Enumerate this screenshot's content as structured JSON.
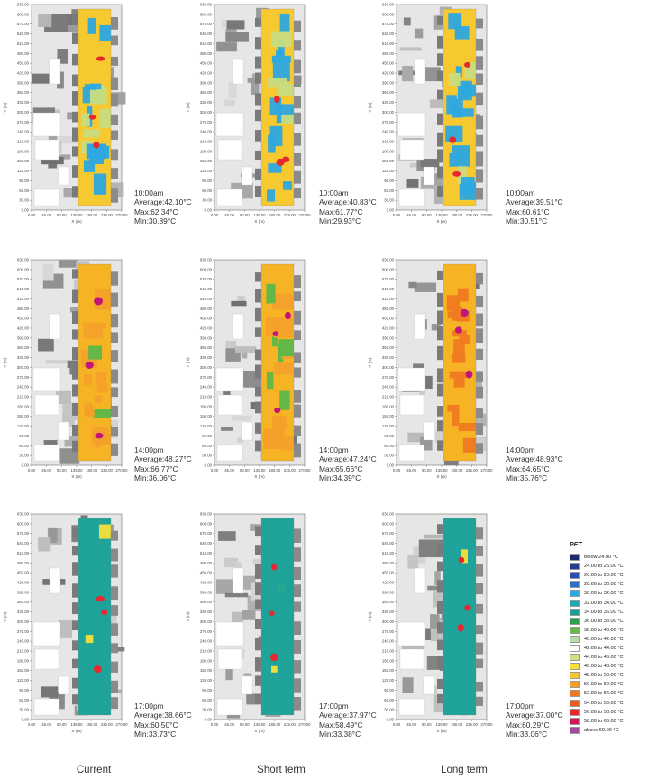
{
  "axes": {
    "x_label": "X (m)",
    "y_label": "Y (m)",
    "x_ticks": [
      "0.00",
      "45.00",
      "90.00",
      "135.00",
      "180.00",
      "225.00",
      "270.00"
    ],
    "y_ticks": [
      "0.00",
      "30.00",
      "60.00",
      "90.00",
      "120.00",
      "150.00",
      "180.00",
      "210.00",
      "240.00",
      "270.00",
      "300.00",
      "330.00",
      "360.00",
      "390.00",
      "420.00",
      "450.00",
      "480.00",
      "510.00",
      "540.00",
      "570.00",
      "600.00",
      "630.00"
    ]
  },
  "columns": [
    "Current",
    "Short term",
    "Long term"
  ],
  "panels": [
    {
      "time": "10:00am",
      "average": "Average:42.10°C",
      "max": "Max:62.34°C",
      "min": "Min:30.89°C",
      "base": "#f7c930",
      "cool": "#2da8e0",
      "alt": "#c8dc80",
      "hot": "#e5292e",
      "cool_share": 0.6
    },
    {
      "time": "10:00am",
      "average": "Average:40.83°C",
      "max": "Max:61.77°C",
      "min": "Min:29.93°C",
      "base": "#f7c930",
      "cool": "#2da8e0",
      "alt": "#c8dc80",
      "hot": "#e5292e",
      "cool_share": 0.65
    },
    {
      "time": "10:00am",
      "average": "Average:39.51°C",
      "max": "Max:60.61°C",
      "min": "Min:30.51°C",
      "base": "#f7c930",
      "cool": "#2da8e0",
      "alt": "#c8dc80",
      "hot": "#e5292e",
      "cool_share": 0.7
    },
    {
      "time": "14:00pm",
      "average": "Average:48.27°C",
      "max": "Max:66.77°C",
      "min": "Min:36.06°C",
      "base": "#f6b323",
      "cool": "#5cb84a",
      "alt": "#f3a12a",
      "hot": "#c4137b",
      "cool_share": 0.15
    },
    {
      "time": "14:00pm",
      "average": "Average:47.24°C",
      "max": "Max:65.66°C",
      "min": "Min:34.39°C",
      "base": "#f6b323",
      "cool": "#5cb84a",
      "alt": "#f3a12a",
      "hot": "#c4137b",
      "cool_share": 0.3
    },
    {
      "time": "14:00pm",
      "average": "Average:48.93°C",
      "max": "Max:64.65°C",
      "min": "Min:35.76°C",
      "base": "#f6b323",
      "cool": "#5cb84a",
      "alt": "#f07a22",
      "hot": "#c4137b",
      "cool_share": 0.25
    },
    {
      "time": "17:00pm",
      "average": "Average:38.66°C",
      "max": "Max:60.50°C",
      "min": "Min:33.73°C",
      "base": "#1fa39a",
      "cool": "#1fa39a",
      "alt": "#f6e03a",
      "hot": "#e5292e",
      "cool_share": 0.75
    },
    {
      "time": "17:00pm",
      "average": "Average:37.97°C",
      "max": "Max:58.49°C",
      "min": "Min:33.38°C",
      "base": "#1fa39a",
      "cool": "#1fa39a",
      "alt": "#f6e03a",
      "hot": "#e5292e",
      "cool_share": 0.8
    },
    {
      "time": "17:00pm",
      "average": "Average:37.00°C",
      "max": "Max:60.29°C",
      "min": "Min:33.06°C",
      "base": "#1fa39a",
      "cool": "#1fa39a",
      "alt": "#f6e03a",
      "hot": "#e5292e",
      "cool_share": 0.85
    }
  ],
  "legend": {
    "title": "PET",
    "items": [
      {
        "label": "below 24.00 °C",
        "color": "#1e2a6e"
      },
      {
        "label": "24.00 to 26.00 °C",
        "color": "#243c94"
      },
      {
        "label": "26.00 to 28.00 °C",
        "color": "#2a51b0"
      },
      {
        "label": "28.00 to 30.00 °C",
        "color": "#2f6fc9"
      },
      {
        "label": "30.00 to 32.00 °C",
        "color": "#2da8e0"
      },
      {
        "label": "32.00 to 34.00 °C",
        "color": "#21a7b6"
      },
      {
        "label": "34.00 to 36.00 °C",
        "color": "#1f9f94"
      },
      {
        "label": "36.00 to 38.00 °C",
        "color": "#2d9e4b"
      },
      {
        "label": "38.00 to 40.00 °C",
        "color": "#67b845"
      },
      {
        "label": "40.00 to 42.00 °C",
        "color": "#b9dca8"
      },
      {
        "label": "42.00 to 44.00 °C",
        "color": "#ffffff"
      },
      {
        "label": "44.00 to 46.00 °C",
        "color": "#d3e07f"
      },
      {
        "label": "46.00 to 48.00 °C",
        "color": "#f6e03a"
      },
      {
        "label": "48.00 to 50.00 °C",
        "color": "#f7c930"
      },
      {
        "label": "50.00 to 52.00 °C",
        "color": "#f3a12a"
      },
      {
        "label": "52.00 to 54.00 °C",
        "color": "#f07a22"
      },
      {
        "label": "54.00 to 56.00 °C",
        "color": "#ea5a22"
      },
      {
        "label": "56.00 to 58.00 °C",
        "color": "#e5292e"
      },
      {
        "label": "58.00 to 60.00 °C",
        "color": "#d11a55"
      },
      {
        "label": "above 60.00 °C",
        "color": "#a44a9c"
      }
    ]
  }
}
